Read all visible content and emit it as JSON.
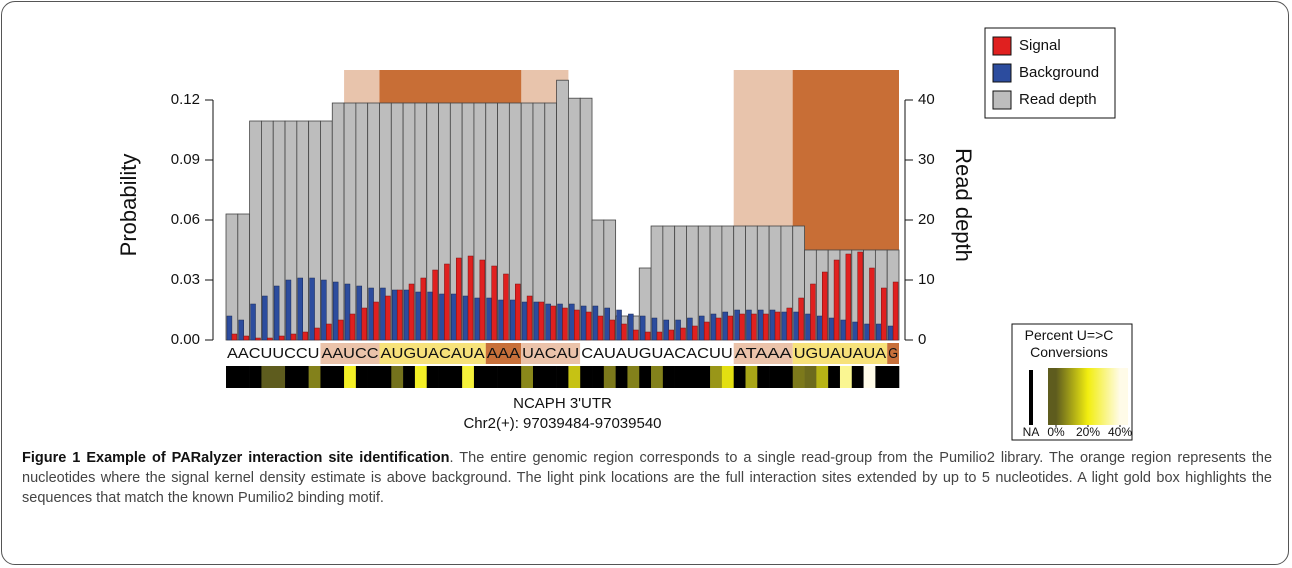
{
  "chart_data": {
    "type": "bar",
    "categories": [
      "A",
      "A",
      "C",
      "U",
      "U",
      "C",
      "C",
      "U",
      "A",
      "A",
      "U",
      "C",
      "C",
      "A",
      "U",
      "G",
      "U",
      "A",
      "C",
      "A",
      "U",
      "A",
      "A",
      "A",
      "A",
      "U",
      "A",
      "C",
      "A",
      "U",
      "C",
      "A",
      "U",
      "A",
      "U",
      "G",
      "U",
      "A",
      "C",
      "A",
      "C",
      "U",
      "U",
      "A",
      "T",
      "A",
      "A",
      "A",
      "U",
      "G",
      "U",
      "A",
      "U",
      "A",
      "U",
      "A",
      "G"
    ],
    "sequence_segments": [
      {
        "text": "AACUUCCU",
        "color": "#ffffff"
      },
      {
        "text": "AAUCC",
        "color": "#ebc3aa"
      },
      {
        "text": "AUGUACAUA",
        "color": "#f7e27a"
      },
      {
        "text": "AAA",
        "color": "#c8703a"
      },
      {
        "text": "UACAU",
        "color": "#ebc3aa"
      },
      {
        "text": "CAUAUGUACACUU",
        "color": "#ffffff"
      },
      {
        "text": "ATAAA",
        "color": "#ebc3aa"
      },
      {
        "text": "UGUAUAUA",
        "color": "#f7e27a"
      },
      {
        "text": "G",
        "color": "#c8703a"
      }
    ],
    "series": [
      {
        "name": "Signal",
        "color": "#e0201f",
        "values": [
          0.003,
          0.002,
          0.001,
          0.001,
          0.002,
          0.003,
          0.004,
          0.006,
          0.008,
          0.01,
          0.013,
          0.016,
          0.019,
          0.022,
          0.025,
          0.028,
          0.031,
          0.035,
          0.038,
          0.041,
          0.042,
          0.04,
          0.037,
          0.033,
          0.028,
          0.022,
          0.019,
          0.017,
          0.016,
          0.015,
          0.014,
          0.012,
          0.01,
          0.008,
          0.005,
          0.004,
          0.004,
          0.005,
          0.006,
          0.007,
          0.009,
          0.011,
          0.012,
          0.013,
          0.013,
          0.013,
          0.014,
          0.016,
          0.021,
          0.028,
          0.034,
          0.04,
          0.043,
          0.044,
          0.036,
          0.026,
          0.029
        ]
      },
      {
        "name": "Background",
        "color": "#2c4c9e",
        "values": [
          0.012,
          0.01,
          0.018,
          0.022,
          0.027,
          0.03,
          0.031,
          0.031,
          0.03,
          0.029,
          0.028,
          0.027,
          0.026,
          0.026,
          0.025,
          0.025,
          0.024,
          0.024,
          0.023,
          0.023,
          0.022,
          0.021,
          0.021,
          0.02,
          0.02,
          0.019,
          0.019,
          0.018,
          0.018,
          0.018,
          0.017,
          0.017,
          0.016,
          0.015,
          0.013,
          0.012,
          0.011,
          0.01,
          0.01,
          0.011,
          0.012,
          0.013,
          0.014,
          0.015,
          0.015,
          0.015,
          0.015,
          0.014,
          0.014,
          0.013,
          0.012,
          0.011,
          0.01,
          0.009,
          0.008,
          0.008,
          0.007
        ]
      },
      {
        "name": "Read depth",
        "color": "#bdbdbd",
        "axis": "y2",
        "values": [
          21,
          21,
          36.5,
          36.5,
          36.5,
          36.5,
          36.5,
          36.5,
          36.5,
          39.5,
          39.5,
          39.5,
          39.5,
          39.5,
          39.5,
          39.5,
          39.5,
          39.5,
          39.5,
          39.5,
          39.5,
          39.5,
          39.5,
          39.5,
          39.5,
          39.5,
          39.5,
          39.5,
          43.3,
          40.3,
          40.3,
          20,
          20,
          4,
          4,
          12,
          19,
          19,
          19,
          19,
          19,
          19,
          19,
          19,
          19,
          19,
          19,
          19,
          19,
          15,
          15,
          15,
          15,
          15,
          15,
          15,
          15
        ]
      }
    ],
    "regions": [
      {
        "start": 10,
        "end": 29,
        "color": "#e8c4ac"
      },
      {
        "start": 13,
        "end": 25,
        "color": "#c86e36"
      },
      {
        "start": 43,
        "end": 57,
        "color": "#e8c4ac"
      },
      {
        "start": 48,
        "end": 57,
        "color": "#c86e36"
      }
    ],
    "conversions": [
      null,
      null,
      null,
      0,
      0,
      null,
      null,
      5,
      null,
      null,
      22,
      null,
      null,
      null,
      3,
      null,
      22,
      null,
      null,
      null,
      24,
      null,
      null,
      null,
      null,
      6,
      null,
      null,
      null,
      14,
      null,
      null,
      4,
      null,
      5,
      null,
      5,
      null,
      null,
      null,
      null,
      8,
      18,
      null,
      10,
      null,
      null,
      null,
      4,
      2,
      12,
      null,
      32,
      null,
      40,
      null,
      null
    ],
    "colorbar": {
      "title": "Percent U=>C Conversions",
      "na_label": "NA",
      "na_color": "#000000",
      "lim": [
        0,
        40
      ],
      "colors": [
        "#5e5c1e",
        "#f2ee10",
        "#fffbe8"
      ],
      "ticks": [
        {
          "value": 0,
          "label": "0%"
        },
        {
          "value": 20,
          "label": "20%"
        },
        {
          "value": 40,
          "label": "40%"
        }
      ]
    },
    "ylabel": "Probability",
    "y2label": "Read depth",
    "xlabel": "NCAPH 3'UTR",
    "xlabel2": "Chr2(+): 97039484-97039540",
    "ylim": [
      0,
      0.135
    ],
    "yticks": [
      {
        "value": 0,
        "label": "0.00"
      },
      {
        "value": 0.03,
        "label": "0.03"
      },
      {
        "value": 0.06,
        "label": "0.06"
      },
      {
        "value": 0.09,
        "label": "0.09"
      },
      {
        "value": 0.12,
        "label": "0.12"
      }
    ],
    "y2lim": [
      0,
      45
    ],
    "y2ticks": [
      0,
      10,
      20,
      30,
      40
    ],
    "legend": "top-right"
  },
  "caption": {
    "label": "Figure 1",
    "title": "Example of PARalyzer interaction site identification",
    "text": ". The entire genomic region corresponds to a single read-group from the Pumilio2 library. The orange region represents the nucleotides where the signal kernel density estimate is above background. The light pink locations are the full interaction sites extended by up to 5 nucleotides. A light gold box highlights the sequences that match the known Pumilio2 binding motif."
  }
}
